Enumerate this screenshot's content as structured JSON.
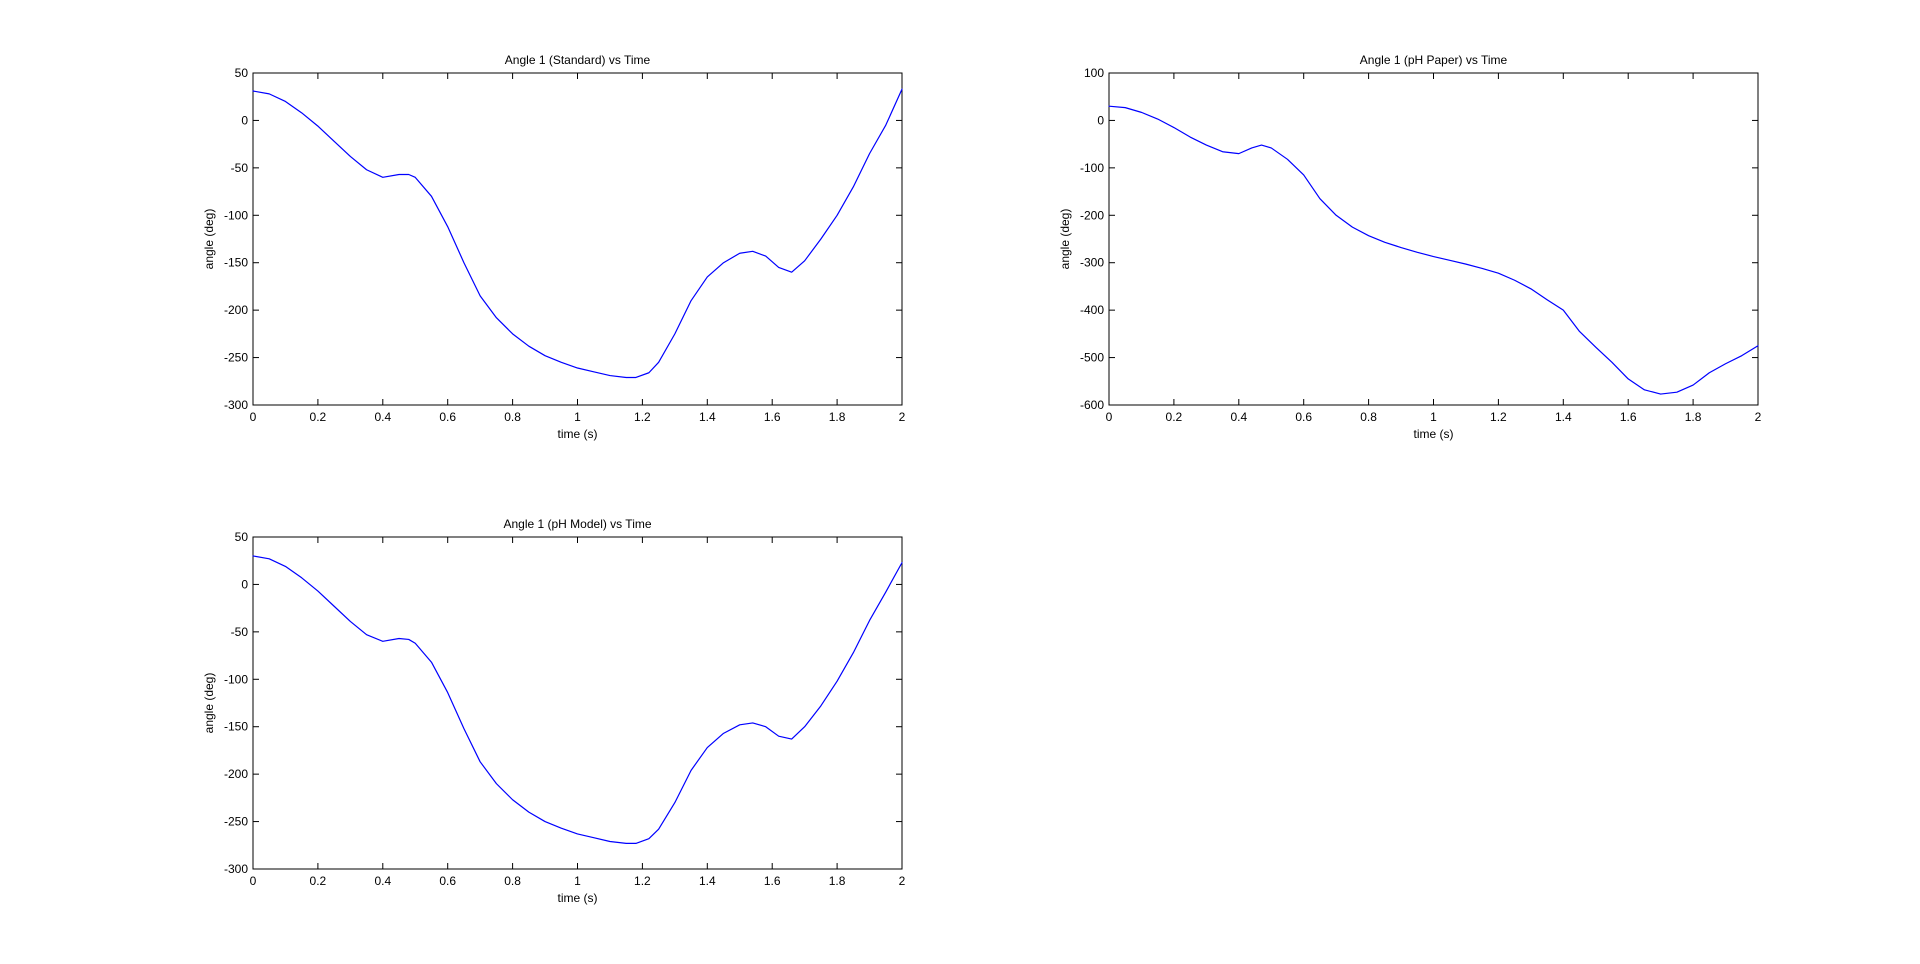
{
  "chart_data": [
    {
      "type": "line",
      "title": "Angle 1 (Standard) vs Time",
      "xlabel": "time (s)",
      "ylabel": "angle (deg)",
      "xlim": [
        0,
        2
      ],
      "ylim": [
        -300,
        50
      ],
      "xticks": [
        0,
        0.2,
        0.4,
        0.6,
        0.8,
        1,
        1.2,
        1.4,
        1.6,
        1.8,
        2
      ],
      "yticks": [
        -300,
        -250,
        -200,
        -150,
        -100,
        -50,
        0,
        50
      ],
      "grid": false,
      "line_color": "#0000ff",
      "series": [
        {
          "x": [
            0,
            0.05,
            0.1,
            0.15,
            0.2,
            0.25,
            0.3,
            0.35,
            0.4,
            0.45,
            0.48,
            0.5,
            0.55,
            0.6,
            0.65,
            0.7,
            0.75,
            0.8,
            0.85,
            0.9,
            0.95,
            1.0,
            1.05,
            1.1,
            1.15,
            1.18,
            1.22,
            1.25,
            1.3,
            1.35,
            1.4,
            1.45,
            1.5,
            1.54,
            1.58,
            1.62,
            1.66,
            1.7,
            1.75,
            1.8,
            1.85,
            1.9,
            1.95,
            2.0
          ],
          "y": [
            31,
            28,
            20,
            8,
            -6,
            -22,
            -38,
            -52,
            -60,
            -57,
            -57,
            -60,
            -80,
            -112,
            -150,
            -185,
            -208,
            -225,
            -238,
            -248,
            -255,
            -261,
            -265,
            -269,
            -271,
            -271,
            -266,
            -255,
            -225,
            -190,
            -165,
            -150,
            -140,
            -138,
            -143,
            -155,
            -160,
            -148,
            -125,
            -100,
            -70,
            -35,
            -5,
            33
          ]
        }
      ]
    },
    {
      "type": "line",
      "title": "Angle 1 (pH Paper) vs Time",
      "xlabel": "time (s)",
      "ylabel": "angle (deg)",
      "xlim": [
        0,
        2
      ],
      "ylim": [
        -600,
        100
      ],
      "xticks": [
        0,
        0.2,
        0.4,
        0.6,
        0.8,
        1,
        1.2,
        1.4,
        1.6,
        1.8,
        2
      ],
      "yticks": [
        -600,
        -500,
        -400,
        -300,
        -200,
        -100,
        0,
        100
      ],
      "grid": false,
      "line_color": "#0000ff",
      "series": [
        {
          "x": [
            0,
            0.05,
            0.1,
            0.15,
            0.2,
            0.25,
            0.3,
            0.35,
            0.4,
            0.44,
            0.47,
            0.5,
            0.55,
            0.6,
            0.65,
            0.7,
            0.75,
            0.8,
            0.85,
            0.9,
            0.95,
            1.0,
            1.05,
            1.1,
            1.15,
            1.2,
            1.25,
            1.3,
            1.35,
            1.4,
            1.45,
            1.5,
            1.55,
            1.6,
            1.65,
            1.7,
            1.75,
            1.8,
            1.85,
            1.9,
            1.95,
            2.0
          ],
          "y": [
            30,
            27,
            17,
            3,
            -15,
            -35,
            -52,
            -66,
            -70,
            -58,
            -52,
            -58,
            -82,
            -115,
            -165,
            -200,
            -225,
            -243,
            -257,
            -268,
            -278,
            -287,
            -295,
            -303,
            -312,
            -322,
            -337,
            -355,
            -378,
            -400,
            -445,
            -478,
            -510,
            -545,
            -568,
            -577,
            -573,
            -558,
            -532,
            -513,
            -496,
            -475
          ]
        }
      ]
    },
    {
      "type": "line",
      "title": "Angle 1 (pH Model) vs Time",
      "xlabel": "time (s)",
      "ylabel": "angle (deg)",
      "xlim": [
        0,
        2
      ],
      "ylim": [
        -300,
        50
      ],
      "xticks": [
        0,
        0.2,
        0.4,
        0.6,
        0.8,
        1,
        1.2,
        1.4,
        1.6,
        1.8,
        2
      ],
      "yticks": [
        -300,
        -250,
        -200,
        -150,
        -100,
        -50,
        0,
        50
      ],
      "grid": false,
      "line_color": "#0000ff",
      "series": [
        {
          "x": [
            0,
            0.05,
            0.1,
            0.15,
            0.2,
            0.25,
            0.3,
            0.35,
            0.4,
            0.45,
            0.48,
            0.5,
            0.55,
            0.6,
            0.65,
            0.7,
            0.75,
            0.8,
            0.85,
            0.9,
            0.95,
            1.0,
            1.05,
            1.1,
            1.15,
            1.18,
            1.22,
            1.25,
            1.3,
            1.35,
            1.4,
            1.45,
            1.5,
            1.54,
            1.58,
            1.62,
            1.66,
            1.7,
            1.75,
            1.8,
            1.85,
            1.9,
            1.95,
            2.0
          ],
          "y": [
            30,
            27,
            19,
            7,
            -7,
            -23,
            -39,
            -53,
            -60,
            -57,
            -58,
            -62,
            -82,
            -114,
            -152,
            -187,
            -210,
            -227,
            -240,
            -250,
            -257,
            -263,
            -267,
            -271,
            -273,
            -273,
            -268,
            -258,
            -230,
            -196,
            -172,
            -157,
            -148,
            -146,
            -150,
            -160,
            -163,
            -150,
            -128,
            -102,
            -72,
            -38,
            -8,
            23
          ]
        }
      ]
    }
  ]
}
